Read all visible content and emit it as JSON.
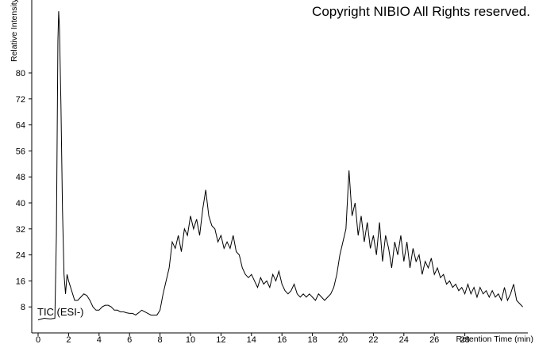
{
  "chart_data": {
    "type": "line",
    "title": "Copyright NIBIO All Rights reserved.",
    "annotation": "TIC (ESI-)",
    "xlabel": "Retention Time (min)",
    "ylabel": "Relative Intensity",
    "color": "#000000",
    "xlim": [
      0,
      32
    ],
    "ylim": [
      0,
      100
    ],
    "xticks": [
      0,
      2,
      4,
      6,
      8,
      10,
      12,
      14,
      16,
      18,
      20,
      22,
      24,
      26,
      28
    ],
    "yticks": [
      8,
      16,
      24,
      32,
      40,
      48,
      56,
      64,
      72,
      80
    ],
    "x": [
      0,
      0.4,
      0.8,
      1.1,
      1.2,
      1.3,
      1.35,
      1.4,
      1.5,
      1.6,
      1.7,
      1.8,
      1.9,
      2.0,
      2.2,
      2.4,
      2.6,
      2.8,
      3.0,
      3.2,
      3.4,
      3.6,
      3.8,
      4.0,
      4.2,
      4.4,
      4.6,
      4.8,
      5.0,
      5.2,
      5.4,
      5.6,
      5.8,
      6.0,
      6.2,
      6.4,
      6.6,
      6.8,
      7.0,
      7.2,
      7.4,
      7.6,
      7.8,
      8.0,
      8.2,
      8.4,
      8.6,
      8.8,
      9.0,
      9.2,
      9.4,
      9.6,
      9.8,
      10.0,
      10.2,
      10.4,
      10.6,
      10.8,
      11.0,
      11.2,
      11.4,
      11.6,
      11.8,
      12.0,
      12.2,
      12.4,
      12.6,
      12.8,
      13.0,
      13.2,
      13.4,
      13.6,
      13.8,
      14.0,
      14.2,
      14.4,
      14.6,
      14.8,
      15.0,
      15.2,
      15.4,
      15.6,
      15.8,
      16.0,
      16.2,
      16.4,
      16.6,
      16.8,
      17.0,
      17.2,
      17.4,
      17.6,
      17.8,
      18.0,
      18.2,
      18.4,
      18.6,
      18.8,
      19.0,
      19.2,
      19.4,
      19.6,
      19.8,
      20.0,
      20.2,
      20.4,
      20.6,
      20.8,
      21.0,
      21.2,
      21.4,
      21.6,
      21.8,
      22.0,
      22.2,
      22.4,
      22.6,
      22.8,
      23.0,
      23.2,
      23.4,
      23.6,
      23.8,
      24.0,
      24.2,
      24.4,
      24.6,
      24.8,
      25.0,
      25.2,
      25.4,
      25.6,
      25.8,
      26.0,
      26.2,
      26.4,
      26.6,
      26.8,
      27.0,
      27.2,
      27.4,
      27.6,
      27.8,
      28.0,
      28.2,
      28.4,
      28.6,
      28.8,
      29.0,
      29.2,
      29.4,
      29.6,
      29.8,
      30.0,
      30.2,
      30.4,
      30.6,
      30.8,
      31.0,
      31.2,
      31.4,
      31.6,
      31.8
    ],
    "values": [
      4,
      4.5,
      4.3,
      4.5,
      30,
      90,
      99,
      94,
      70,
      38,
      18,
      12,
      18,
      16,
      13,
      10,
      10,
      11,
      12,
      11.5,
      10,
      8,
      7,
      7,
      8,
      8.5,
      8.5,
      8,
      7,
      7,
      6.5,
      6.5,
      6.2,
      6,
      6,
      5.5,
      6.2,
      7,
      6.5,
      6,
      5.5,
      5.5,
      5.5,
      7,
      12,
      16,
      20,
      28,
      26,
      30,
      25,
      32,
      30,
      36,
      32,
      35,
      30,
      38,
      44,
      36,
      33,
      32,
      28,
      30,
      26,
      28,
      26,
      30,
      25,
      24,
      20,
      18,
      17,
      18,
      16,
      14,
      17,
      15,
      16,
      14,
      18,
      16,
      19,
      15,
      13,
      12,
      13,
      15,
      12,
      11,
      12,
      11,
      12,
      11,
      10,
      12,
      11,
      10,
      11,
      12,
      14,
      18,
      24,
      28,
      32,
      50,
      36,
      40,
      30,
      36,
      28,
      34,
      26,
      30,
      24,
      34,
      22,
      30,
      26,
      20,
      28,
      24,
      30,
      22,
      28,
      20,
      26,
      22,
      24,
      18,
      22,
      20,
      23,
      18,
      20,
      17,
      18,
      15,
      16,
      14,
      15,
      13,
      14,
      12,
      15,
      12,
      14,
      11,
      14,
      12,
      13,
      11,
      13,
      11,
      12,
      10,
      14,
      10,
      12,
      15,
      10,
      9,
      8
    ]
  }
}
